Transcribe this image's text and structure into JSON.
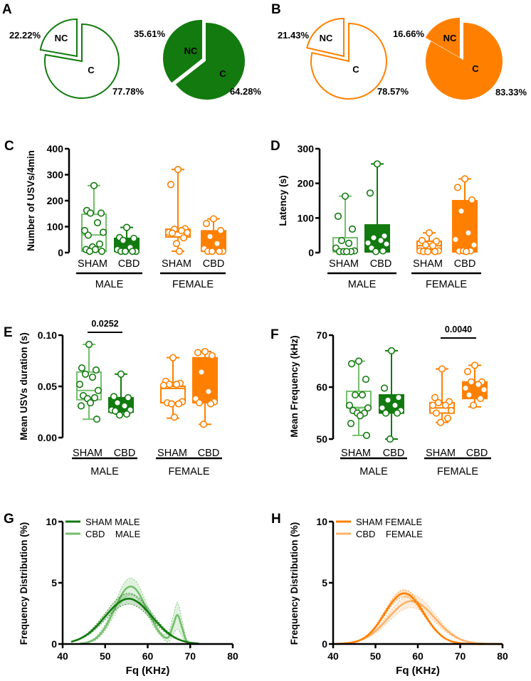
{
  "colors": {
    "light_green": "#74bf6c",
    "dark_green": "#127a0f",
    "orange": "#ff8000",
    "light_orange": "#ffb26a"
  },
  "panel_letters": {
    "A": "A",
    "B": "B",
    "C": "C",
    "D": "D",
    "E": "E",
    "F": "F",
    "G": "G",
    "H": "H"
  },
  "chart_data": [
    {
      "id": "A",
      "type": "pie",
      "pies": [
        {
          "style": "open",
          "color": "green",
          "slices": [
            {
              "label": "NC",
              "value": 22.22,
              "pct_label": "22.22%"
            },
            {
              "label": "C",
              "value": 77.78,
              "pct_label": "77.78%"
            }
          ]
        },
        {
          "style": "filled",
          "color": "green",
          "slices": [
            {
              "label": "NC",
              "value": 35.61,
              "pct_label": "35.61%"
            },
            {
              "label": "C",
              "value": 64.28,
              "pct_label": "64.28%"
            }
          ]
        }
      ]
    },
    {
      "id": "B",
      "type": "pie",
      "pies": [
        {
          "style": "open",
          "color": "orange",
          "slices": [
            {
              "label": "NC",
              "value": 21.43,
              "pct_label": "21.43%"
            },
            {
              "label": "C",
              "value": 78.57,
              "pct_label": "78.57%"
            }
          ]
        },
        {
          "style": "filled",
          "color": "orange",
          "slices": [
            {
              "label": "NC",
              "value": 16.66,
              "pct_label": "16.66%"
            },
            {
              "label": "C",
              "value": 83.33,
              "pct_label": "83.33%"
            }
          ]
        }
      ]
    },
    {
      "id": "C",
      "type": "box",
      "ylabel": "Number of USVs/4min",
      "ylim": [
        0,
        400
      ],
      "yticks": [
        "0",
        "100",
        "200",
        "300",
        "400"
      ],
      "group_labels": [
        "SHAM",
        "CBD",
        "SHAM",
        "CBD"
      ],
      "sex_labels": [
        "MALE",
        "FEMALE"
      ],
      "groups": [
        {
          "style": "open",
          "sex": "male",
          "min": 5,
          "q1": 5,
          "median": 68,
          "q3": 148,
          "max": 258,
          "points": [
            258,
            162,
            152,
            152,
            115,
            85,
            78,
            67,
            33,
            22,
            12,
            12,
            5,
            5
          ]
        },
        {
          "style": "filled",
          "sex": "male",
          "min": 5,
          "q1": 5,
          "median": 30,
          "q3": 55,
          "max": 97,
          "points": [
            97,
            58,
            55,
            47,
            20,
            12,
            5,
            5,
            5,
            5
          ]
        },
        {
          "style": "open",
          "sex": "female",
          "min": 5,
          "q1": 60,
          "median": 80,
          "q3": 90,
          "max": 320,
          "points": [
            320,
            262,
            92,
            90,
            85,
            78,
            77,
            75,
            57,
            35,
            5
          ]
        },
        {
          "style": "filled",
          "sex": "female",
          "min": 5,
          "q1": 5,
          "median": 30,
          "q3": 84,
          "max": 130,
          "points": [
            130,
            112,
            85,
            62,
            35,
            15,
            5,
            5,
            5,
            5
          ]
        }
      ]
    },
    {
      "id": "D",
      "type": "box",
      "ylabel": "Latency (s)",
      "ylim": [
        0,
        300
      ],
      "yticks": [
        "0",
        "100",
        "200",
        "300"
      ],
      "group_labels": [
        "SHAM",
        "CBD",
        "SHAM",
        "CBD"
      ],
      "sex_labels": [
        "MALE",
        "FEMALE"
      ],
      "groups": [
        {
          "style": "open",
          "sex": "male",
          "min": 2,
          "q1": 2,
          "median": 8,
          "q3": 43,
          "max": 163,
          "points": [
            163,
            105,
            68,
            35,
            27,
            13,
            5,
            3,
            3,
            3,
            3
          ]
        },
        {
          "style": "filled",
          "sex": "male",
          "min": 2,
          "q1": 2,
          "median": 30,
          "q3": 80,
          "max": 256,
          "points": [
            256,
            172,
            48,
            43,
            35,
            28,
            25,
            13,
            5,
            3
          ]
        },
        {
          "style": "open",
          "sex": "female",
          "min": 2,
          "q1": 10,
          "median": 20,
          "q3": 33,
          "max": 57,
          "points": [
            57,
            35,
            33,
            22,
            20,
            5,
            5,
            3,
            3,
            3
          ]
        },
        {
          "style": "filled",
          "sex": "female",
          "min": 2,
          "q1": 2,
          "median": 40,
          "q3": 150,
          "max": 213,
          "points": [
            213,
            188,
            152,
            120,
            57,
            38,
            22,
            5,
            5,
            5,
            3
          ]
        }
      ]
    },
    {
      "id": "E",
      "type": "box",
      "ylabel": "Mean USVs duration (s)",
      "ylim": [
        0,
        0.1
      ],
      "yticks": [
        "0.00",
        "0.05",
        "0.10"
      ],
      "group_labels": [
        "SHAM",
        "CBD",
        "SHAM",
        "CBD"
      ],
      "sex_labels": [
        "MALE",
        "FEMALE"
      ],
      "significance": {
        "groups": [
          0,
          1
        ],
        "label": "0.0252"
      },
      "groups": [
        {
          "style": "open",
          "sex": "male",
          "min": 0.018,
          "q1": 0.037,
          "median": 0.046,
          "q3": 0.064,
          "max": 0.091,
          "points": [
            0.091,
            0.068,
            0.066,
            0.062,
            0.059,
            0.052,
            0.046,
            0.041,
            0.039,
            0.038,
            0.034,
            0.031,
            0.018
          ]
        },
        {
          "style": "filled",
          "sex": "male",
          "min": 0.023,
          "q1": 0.025,
          "median": 0.033,
          "q3": 0.039,
          "max": 0.062,
          "points": [
            0.062,
            0.04,
            0.039,
            0.034,
            0.031,
            0.027,
            0.027,
            0.026,
            0.023,
            0.022
          ]
        },
        {
          "style": "open",
          "sex": "female",
          "min": 0.019,
          "q1": 0.034,
          "median": 0.048,
          "q3": 0.05,
          "max": 0.078,
          "points": [
            0.078,
            0.055,
            0.053,
            0.052,
            0.052,
            0.051,
            0.035,
            0.034,
            0.033,
            0.033,
            0.02
          ]
        },
        {
          "style": "filled",
          "sex": "female",
          "min": 0.013,
          "q1": 0.034,
          "median": 0.045,
          "q3": 0.078,
          "max": 0.084,
          "points": [
            0.084,
            0.083,
            0.08,
            0.064,
            0.045,
            0.038,
            0.035,
            0.034,
            0.033,
            0.013
          ]
        }
      ]
    },
    {
      "id": "F",
      "type": "box",
      "ylabel": "Mean  Frequency (kHz)",
      "ylim": [
        50,
        70
      ],
      "yticks": [
        "50",
        "60",
        "70"
      ],
      "group_labels": [
        "SHAM",
        "CBD",
        "SHAM",
        "CBD"
      ],
      "sex_labels": [
        "MALE",
        "FEMALE"
      ],
      "significance": {
        "groups": [
          2,
          3
        ],
        "label": "0.0040"
      },
      "groups": [
        {
          "style": "open",
          "sex": "male",
          "min": 50.7,
          "q1": 56,
          "median": 56.1,
          "q3": 59.2,
          "max": 65,
          "points": [
            65,
            64.5,
            61.5,
            58.5,
            58.5,
            56.5,
            56,
            55.5,
            55,
            55,
            54.5,
            53,
            50.7
          ]
        },
        {
          "style": "filled",
          "sex": "male",
          "min": 50,
          "q1": 55,
          "median": 56,
          "q3": 58.5,
          "max": 67,
          "points": [
            67,
            59.8,
            58,
            57.5,
            56.5,
            56,
            55.5,
            55,
            55,
            50
          ]
        },
        {
          "style": "open",
          "sex": "female",
          "min": 53.2,
          "q1": 55,
          "median": 56,
          "q3": 57,
          "max": 63.5,
          "points": [
            63.5,
            58,
            57.2,
            57,
            56.5,
            56.5,
            55.5,
            55,
            54,
            53.2
          ]
        },
        {
          "style": "filled",
          "sex": "female",
          "min": 56.2,
          "q1": 57.8,
          "median": 59.8,
          "q3": 61,
          "max": 64.2,
          "points": [
            64.2,
            63,
            61,
            61,
            60.5,
            59.8,
            59.5,
            58.5,
            57.8,
            56.5
          ]
        }
      ]
    },
    {
      "id": "G",
      "type": "line",
      "xlabel": "Fq (KHz)",
      "ylabel": "Frequency Distribution (%)",
      "xlim": [
        40,
        80
      ],
      "ylim": [
        0,
        10
      ],
      "xticks": [
        "40",
        "50",
        "60",
        "70",
        "80"
      ],
      "yticks": [
        "0",
        "5",
        "10"
      ],
      "legend_position": "top-left",
      "series": [
        {
          "name": "SHAM MALE",
          "color": "dark_green",
          "x": [
            42,
            44,
            46,
            48,
            50,
            52,
            54,
            56,
            58,
            60,
            62,
            64,
            66,
            68,
            70,
            72
          ],
          "y": [
            0.18,
            0.42,
            0.83,
            1.46,
            2.25,
            3.02,
            3.56,
            3.69,
            3.34,
            2.65,
            1.84,
            1.12,
            0.6,
            0.28,
            0.11,
            0.04
          ],
          "lower": [
            0.16,
            0.37,
            0.73,
            1.28,
            1.98,
            2.66,
            3.13,
            3.25,
            2.94,
            2.33,
            1.62,
            0.99,
            0.53,
            0.25,
            0.1,
            0.03
          ],
          "upper": [
            0.2,
            0.47,
            0.93,
            1.64,
            2.52,
            3.38,
            3.99,
            4.13,
            3.74,
            2.97,
            2.06,
            1.25,
            0.67,
            0.31,
            0.12,
            0.05
          ]
        },
        {
          "name": "CBD    MALE",
          "color": "light_green",
          "x": [
            44,
            46,
            48,
            50,
            52,
            54,
            55,
            56,
            57,
            58,
            60,
            62,
            63,
            64,
            65,
            66,
            67,
            68,
            69,
            70,
            71,
            72
          ],
          "y": [
            0.03,
            0.15,
            0.51,
            1.35,
            2.7,
            4.09,
            4.54,
            4.7,
            4.54,
            4.09,
            2.7,
            1.35,
            0.86,
            0.54,
            0.6,
            1.55,
            2.37,
            1.43,
            0.31,
            0.03,
            0,
            0
          ],
          "lower": [
            0,
            0.1,
            0.38,
            1.1,
            2.3,
            3.5,
            3.9,
            4.0,
            3.9,
            3.5,
            2.3,
            1.1,
            0.7,
            0.3,
            0.2,
            0.8,
            1.2,
            0.7,
            0.1,
            0,
            0,
            0
          ],
          "upper": [
            0.05,
            0.2,
            0.65,
            1.6,
            3.1,
            4.7,
            5.2,
            5.4,
            5.2,
            4.7,
            3.1,
            1.6,
            1.0,
            0.8,
            1.0,
            2.3,
            3.4,
            2.1,
            0.6,
            0.1,
            0,
            0
          ]
        }
      ]
    },
    {
      "id": "H",
      "type": "line",
      "xlabel": "Fq (KHz)",
      "ylabel": "Frequency Distribution (%)",
      "xlim": [
        40,
        80
      ],
      "ylim": [
        0,
        10
      ],
      "xticks": [
        "40",
        "50",
        "60",
        "70",
        "80"
      ],
      "yticks": [
        "0",
        "5",
        "10"
      ],
      "legend_position": "top-left",
      "series": [
        {
          "name": "SHAM FEMALE",
          "color": "orange",
          "x": [
            40,
            42,
            44,
            46,
            48,
            50,
            52,
            54,
            56,
            58,
            60,
            62,
            64,
            66,
            68,
            70,
            72,
            74,
            76,
            78,
            80
          ],
          "y": [
            0.005,
            0.02,
            0.09,
            0.26,
            0.66,
            1.39,
            2.41,
            3.45,
            4.09,
            4.01,
            3.26,
            2.19,
            1.22,
            0.56,
            0.21,
            0.07,
            0.02,
            0,
            0,
            0,
            0
          ],
          "lower": [
            0,
            0.02,
            0.08,
            0.24,
            0.61,
            1.29,
            2.24,
            3.21,
            3.8,
            3.73,
            3.03,
            2.04,
            1.13,
            0.52,
            0.2,
            0.07,
            0.02,
            0,
            0,
            0,
            0
          ],
          "upper": [
            0.01,
            0.03,
            0.1,
            0.28,
            0.71,
            1.49,
            2.58,
            3.69,
            4.38,
            4.29,
            3.49,
            2.34,
            1.31,
            0.6,
            0.22,
            0.07,
            0.02,
            0,
            0,
            0,
            0
          ]
        },
        {
          "name": "CBD    FEMALE",
          "color": "light_orange",
          "x": [
            40,
            42,
            44,
            46,
            48,
            50,
            52,
            54,
            56,
            58,
            60,
            62,
            64,
            66,
            68,
            70,
            72,
            74,
            76,
            78,
            80
          ],
          "y": [
            0.01,
            0.04,
            0.11,
            0.27,
            0.57,
            1.06,
            1.74,
            2.5,
            3.16,
            3.49,
            3.37,
            2.86,
            2.12,
            1.38,
            0.79,
            0.39,
            0.17,
            0.07,
            0.02,
            0,
            0
          ],
          "lower": [
            0.01,
            0.03,
            0.09,
            0.23,
            0.48,
            0.9,
            1.48,
            2.13,
            2.69,
            2.97,
            2.86,
            2.43,
            1.8,
            1.17,
            0.67,
            0.33,
            0.14,
            0.06,
            0.02,
            0,
            0
          ],
          "upper": [
            0.01,
            0.05,
            0.13,
            0.31,
            0.66,
            1.22,
            2.0,
            2.88,
            3.63,
            4.01,
            3.88,
            3.29,
            2.44,
            1.59,
            0.91,
            0.45,
            0.2,
            0.08,
            0.02,
            0,
            0
          ]
        }
      ]
    }
  ]
}
